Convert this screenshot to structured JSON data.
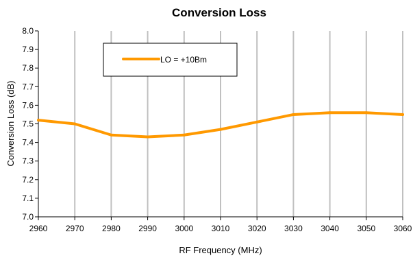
{
  "chart_data": {
    "type": "line",
    "title": "Conversion Loss",
    "xlabel": "RF Frequency (MHz)",
    "ylabel": "Conversion Loss (dB)",
    "xlim": [
      2960,
      3060
    ],
    "ylim": [
      7.0,
      8.0
    ],
    "x_ticks": [
      "2960",
      "2970",
      "2980",
      "2990",
      "3000",
      "3010",
      "3020",
      "3030",
      "3040",
      "3050",
      "3060"
    ],
    "y_ticks": [
      "7.0",
      "7.1",
      "7.2",
      "7.3",
      "7.4",
      "7.5",
      "7.6",
      "7.7",
      "7.8",
      "7.9",
      "8.0"
    ],
    "grid": "vertical",
    "legend_position": "top-left",
    "series": [
      {
        "name": "LO = +10Bm",
        "color": "#FF9900",
        "x": [
          2960,
          2970,
          2980,
          2990,
          3000,
          3010,
          3020,
          3030,
          3040,
          3050,
          3060
        ],
        "y": [
          7.52,
          7.5,
          7.44,
          7.43,
          7.44,
          7.47,
          7.51,
          7.55,
          7.56,
          7.56,
          7.55
        ]
      }
    ]
  }
}
